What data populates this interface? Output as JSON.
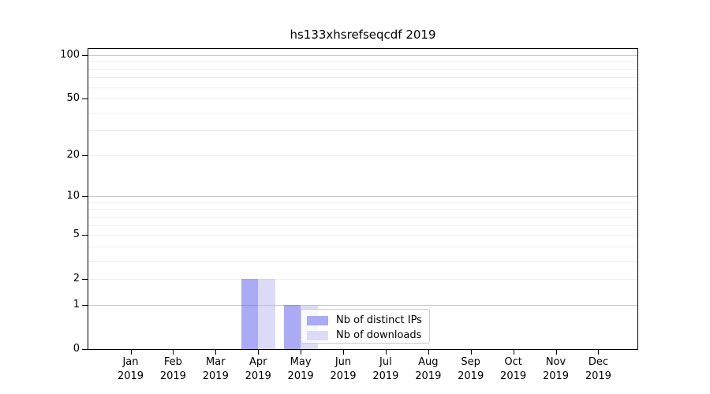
{
  "chart_data": {
    "type": "bar",
    "title": "hs133xhsrefseqcdf 2019",
    "x": [
      "Jan",
      "Feb",
      "Mar",
      "Apr",
      "May",
      "Jun",
      "Jul",
      "Aug",
      "Sep",
      "Oct",
      "Nov",
      "Dec"
    ],
    "x_year": "2019",
    "series": [
      {
        "name": "Nb of distinct IPs",
        "color": "#aaaaf5",
        "values": [
          0,
          0,
          0,
          2,
          1,
          0,
          0,
          0,
          0,
          0,
          0,
          0
        ]
      },
      {
        "name": "Nb of downloads",
        "color": "#dbdbf8",
        "values": [
          0,
          0,
          0,
          2,
          1,
          0,
          0,
          0,
          0,
          0,
          0,
          0
        ]
      }
    ],
    "yscale": "log1p",
    "ylim": [
      0,
      108
    ],
    "y_labeled_ticks": [
      0,
      1,
      2,
      5,
      10,
      20,
      50,
      100
    ],
    "y_major_grid": [
      1,
      10,
      100
    ],
    "y_minor_grid": [
      2,
      3,
      4,
      6,
      7,
      8,
      9,
      5,
      30,
      40,
      60,
      70,
      80,
      90,
      20,
      50
    ],
    "grid": "horizontal",
    "legend": {
      "position": "lower-center-right-of-bars"
    }
  }
}
